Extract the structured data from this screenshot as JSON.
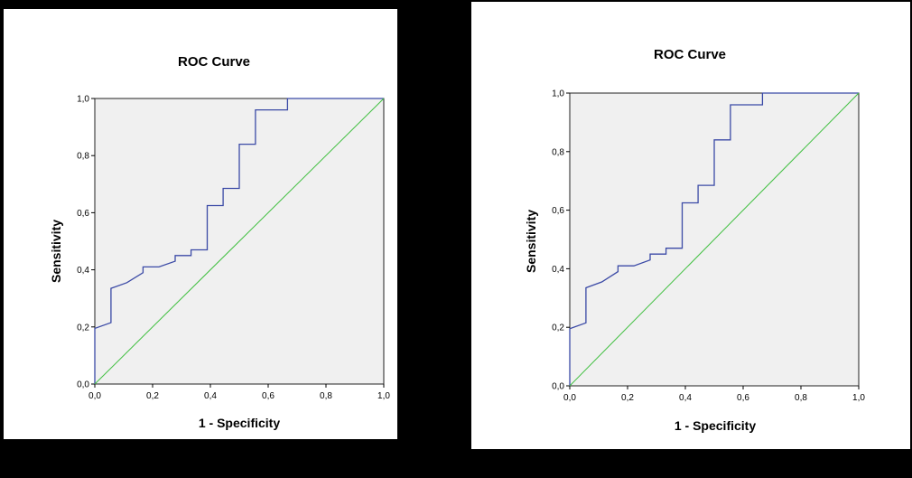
{
  "colors": {
    "background": "#000000",
    "panel": "#ffffff",
    "plot_area": "#f0f0f0",
    "roc_curve": "#3b4aa6",
    "reference_line": "#3fbf3f",
    "axis": "#000000"
  },
  "chart_data": [
    {
      "type": "line",
      "title": "ROC Curve",
      "xlabel": "1 - Specificity",
      "ylabel": "Sensitivity",
      "xlim": [
        0,
        1
      ],
      "ylim": [
        0,
        1
      ],
      "grid": false,
      "x_ticks": [
        "0,0",
        "0,2",
        "0,4",
        "0,6",
        "0,8",
        "1,0"
      ],
      "y_ticks": [
        "0,0",
        "0,2",
        "0,4",
        "0,6",
        "0,8",
        "1,0"
      ],
      "series": [
        {
          "role": "roc",
          "x": [
            0.0,
            0.0,
            0.056,
            0.056,
            0.111,
            0.167,
            0.167,
            0.222,
            0.278,
            0.278,
            0.333,
            0.333,
            0.389,
            0.389,
            0.444,
            0.444,
            0.5,
            0.5,
            0.556,
            0.556,
            0.667,
            0.667,
            1.0
          ],
          "y": [
            0.0,
            0.195,
            0.215,
            0.335,
            0.355,
            0.39,
            0.41,
            0.41,
            0.43,
            0.45,
            0.45,
            0.47,
            0.47,
            0.625,
            0.625,
            0.685,
            0.685,
            0.84,
            0.84,
            0.96,
            0.96,
            1.0,
            1.0
          ]
        },
        {
          "role": "reference",
          "x": [
            0,
            1
          ],
          "y": [
            0,
            1
          ]
        }
      ]
    },
    {
      "type": "line",
      "title": "ROC Curve",
      "xlabel": "1 - Specificity",
      "ylabel": "Sensitivity",
      "xlim": [
        0,
        1
      ],
      "ylim": [
        0,
        1
      ],
      "grid": false,
      "x_ticks": [
        "0,0",
        "0,2",
        "0,4",
        "0,6",
        "0,8",
        "1,0"
      ],
      "y_ticks": [
        "0,0",
        "0,2",
        "0,4",
        "0,6",
        "0,8",
        "1,0"
      ],
      "series": [
        {
          "role": "roc",
          "x": [
            0.0,
            0.0,
            0.056,
            0.056,
            0.111,
            0.167,
            0.167,
            0.222,
            0.278,
            0.278,
            0.333,
            0.333,
            0.389,
            0.389,
            0.444,
            0.444,
            0.5,
            0.5,
            0.556,
            0.556,
            0.667,
            0.667,
            1.0
          ],
          "y": [
            0.0,
            0.195,
            0.215,
            0.335,
            0.355,
            0.39,
            0.41,
            0.41,
            0.43,
            0.45,
            0.45,
            0.47,
            0.47,
            0.625,
            0.625,
            0.685,
            0.685,
            0.84,
            0.84,
            0.96,
            0.96,
            1.0,
            1.0
          ]
        },
        {
          "role": "reference",
          "x": [
            0,
            1
          ],
          "y": [
            0,
            1
          ]
        }
      ]
    }
  ]
}
